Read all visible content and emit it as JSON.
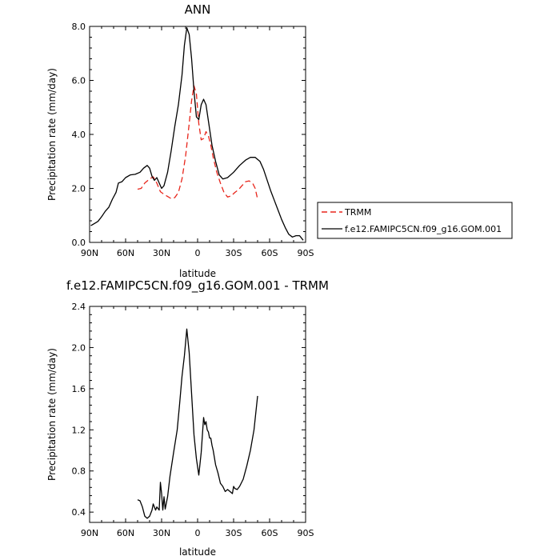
{
  "chart_data": [
    {
      "type": "line",
      "title": "ANN",
      "xlabel": "latitude",
      "ylabel": "Precipitation rate (mm/day)",
      "xlim": [
        90,
        -90
      ],
      "ylim": [
        0,
        8
      ],
      "xticks": [
        90,
        60,
        30,
        0,
        -30,
        -60,
        -90
      ],
      "xtick_labels": [
        "90N",
        "60N",
        "30N",
        "0",
        "30S",
        "60S",
        "90S"
      ],
      "yticks": [
        0,
        2,
        4,
        6,
        8
      ],
      "ytick_labels": [
        "0.0",
        "2.0",
        "4.0",
        "6.0",
        "8.0"
      ],
      "legend_position": "right",
      "series": [
        {
          "name": "TRMM",
          "color": "#e8251b",
          "style": "dashed",
          "points": [
            [
              50,
              1.97
            ],
            [
              47,
              2.0
            ],
            [
              44,
              2.2
            ],
            [
              40,
              2.35
            ],
            [
              37,
              2.43
            ],
            [
              34,
              2.2
            ],
            [
              31,
              1.88
            ],
            [
              28,
              1.78
            ],
            [
              25,
              1.7
            ],
            [
              22,
              1.62
            ],
            [
              19,
              1.66
            ],
            [
              16,
              1.85
            ],
            [
              13,
              2.35
            ],
            [
              10,
              3.2
            ],
            [
              7,
              4.4
            ],
            [
              5,
              5.25
            ],
            [
              3,
              5.8
            ],
            [
              1,
              5.5
            ],
            [
              -1,
              4.4
            ],
            [
              -3,
              3.8
            ],
            [
              -5,
              3.85
            ],
            [
              -7,
              4.1
            ],
            [
              -9,
              3.95
            ],
            [
              -11,
              3.6
            ],
            [
              -13,
              3.15
            ],
            [
              -16,
              2.6
            ],
            [
              -19,
              2.2
            ],
            [
              -22,
              1.85
            ],
            [
              -25,
              1.68
            ],
            [
              -28,
              1.72
            ],
            [
              -31,
              1.85
            ],
            [
              -34,
              1.95
            ],
            [
              -37,
              2.1
            ],
            [
              -40,
              2.25
            ],
            [
              -43,
              2.28
            ],
            [
              -46,
              2.18
            ],
            [
              -48,
              2.0
            ],
            [
              -50,
              1.6
            ]
          ]
        },
        {
          "name": "f.e12.FAMIPC5CN.f09_g16.GOM.001",
          "color": "#000000",
          "style": "solid",
          "points": [
            [
              89,
              0.62
            ],
            [
              86,
              0.7
            ],
            [
              83,
              0.78
            ],
            [
              80,
              0.95
            ],
            [
              77,
              1.15
            ],
            [
              74,
              1.3
            ],
            [
              71,
              1.6
            ],
            [
              68,
              1.85
            ],
            [
              66,
              2.2
            ],
            [
              63,
              2.25
            ],
            [
              60,
              2.4
            ],
            [
              56,
              2.5
            ],
            [
              52,
              2.52
            ],
            [
              48,
              2.6
            ],
            [
              45,
              2.75
            ],
            [
              42,
              2.85
            ],
            [
              40,
              2.75
            ],
            [
              38,
              2.45
            ],
            [
              36,
              2.3
            ],
            [
              34,
              2.4
            ],
            [
              32,
              2.2
            ],
            [
              30,
              2.0
            ],
            [
              28,
              2.1
            ],
            [
              25,
              2.6
            ],
            [
              22,
              3.4
            ],
            [
              19,
              4.3
            ],
            [
              16,
              5.1
            ],
            [
              13,
              6.2
            ],
            [
              11,
              7.3
            ],
            [
              9,
              7.95
            ],
            [
              7,
              7.7
            ],
            [
              5,
              6.8
            ],
            [
              3,
              5.6
            ],
            [
              1,
              4.65
            ],
            [
              -1,
              4.55
            ],
            [
              -3,
              5.1
            ],
            [
              -5,
              5.3
            ],
            [
              -7,
              5.1
            ],
            [
              -9,
              4.5
            ],
            [
              -12,
              3.6
            ],
            [
              -15,
              3.0
            ],
            [
              -18,
              2.5
            ],
            [
              -21,
              2.35
            ],
            [
              -25,
              2.4
            ],
            [
              -30,
              2.6
            ],
            [
              -35,
              2.85
            ],
            [
              -40,
              3.05
            ],
            [
              -44,
              3.15
            ],
            [
              -48,
              3.15
            ],
            [
              -52,
              3.0
            ],
            [
              -55,
              2.7
            ],
            [
              -58,
              2.3
            ],
            [
              -61,
              1.9
            ],
            [
              -64,
              1.55
            ],
            [
              -67,
              1.2
            ],
            [
              -70,
              0.85
            ],
            [
              -73,
              0.55
            ],
            [
              -76,
              0.3
            ],
            [
              -79,
              0.2
            ],
            [
              -82,
              0.25
            ],
            [
              -85,
              0.25
            ],
            [
              -88,
              0.08
            ]
          ]
        }
      ]
    },
    {
      "type": "line",
      "title": "f.e12.FAMIPC5CN.f09_g16.GOM.001 - TRMM",
      "xlabel": "latitude",
      "ylabel": "Precipitation rate (mm/day)",
      "xlim": [
        90,
        -90
      ],
      "ylim": [
        0.3,
        2.4
      ],
      "xticks": [
        90,
        60,
        30,
        0,
        -30,
        -60,
        -90
      ],
      "xtick_labels": [
        "90N",
        "60N",
        "30N",
        "0",
        "30S",
        "60S",
        "90S"
      ],
      "yticks": [
        0.4,
        0.8,
        1.2,
        1.6,
        2.0,
        2.4
      ],
      "ytick_labels": [
        "0.4",
        "0.8",
        "1.2",
        "1.6",
        "2.0",
        "2.4"
      ],
      "series": [
        {
          "color": "#000000",
          "style": "solid",
          "points": [
            [
              50,
              0.52
            ],
            [
              48,
              0.51
            ],
            [
              46,
              0.45
            ],
            [
              44,
              0.36
            ],
            [
              42,
              0.34
            ],
            [
              40,
              0.36
            ],
            [
              38,
              0.42
            ],
            [
              37,
              0.48
            ],
            [
              35,
              0.42
            ],
            [
              34,
              0.45
            ],
            [
              32,
              0.42
            ],
            [
              31,
              0.69
            ],
            [
              30,
              0.58
            ],
            [
              29,
              0.42
            ],
            [
              28,
              0.55
            ],
            [
              27,
              0.43
            ],
            [
              25,
              0.55
            ],
            [
              23,
              0.75
            ],
            [
              20,
              0.98
            ],
            [
              17,
              1.2
            ],
            [
              15,
              1.45
            ],
            [
              13,
              1.72
            ],
            [
              11,
              1.92
            ],
            [
              9,
              2.18
            ],
            [
              7,
              1.95
            ],
            [
              5,
              1.55
            ],
            [
              3,
              1.15
            ],
            [
              1,
              0.92
            ],
            [
              -1,
              0.76
            ],
            [
              -3,
              0.98
            ],
            [
              -5,
              1.32
            ],
            [
              -6,
              1.25
            ],
            [
              -7,
              1.28
            ],
            [
              -8,
              1.2
            ],
            [
              -9,
              1.18
            ],
            [
              -10,
              1.12
            ],
            [
              -11,
              1.12
            ],
            [
              -12,
              1.05
            ],
            [
              -13,
              1.0
            ],
            [
              -15,
              0.86
            ],
            [
              -17,
              0.78
            ],
            [
              -19,
              0.68
            ],
            [
              -21,
              0.65
            ],
            [
              -23,
              0.6
            ],
            [
              -25,
              0.62
            ],
            [
              -27,
              0.6
            ],
            [
              -29,
              0.58
            ],
            [
              -30,
              0.65
            ],
            [
              -31,
              0.63
            ],
            [
              -33,
              0.62
            ],
            [
              -35,
              0.65
            ],
            [
              -38,
              0.72
            ],
            [
              -41,
              0.85
            ],
            [
              -44,
              1.0
            ],
            [
              -47,
              1.2
            ],
            [
              -50,
              1.53
            ]
          ]
        }
      ]
    }
  ]
}
